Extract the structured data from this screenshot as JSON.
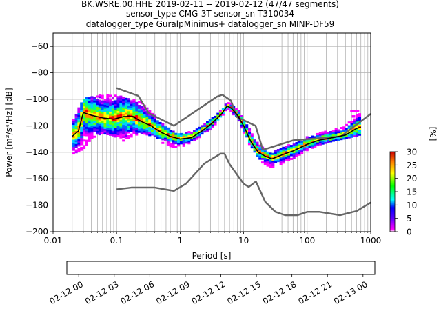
{
  "chart_data": {
    "type": "heatmap",
    "title_lines": [
      "BK.WSRE.00.HHE   2019-02-11 -- 2019-02-12  (47/47 segments)",
      "sensor_type CMG-3T sensor_sn T310034",
      "datalogger_type GuralpMinimus+ datalogger_sn MINP-DF59"
    ],
    "xlabel": "Period [s]",
    "ylabel": "Power [m²/s⁴/Hz] [dB]",
    "xscale": "log",
    "xlim": [
      0.01,
      1000
    ],
    "ylim": [
      -200,
      -50
    ],
    "xticks": [
      {
        "v": 0.01,
        "label": "0.01"
      },
      {
        "v": 0.1,
        "label": "0.1"
      },
      {
        "v": 1,
        "label": "1"
      },
      {
        "v": 10,
        "label": "10"
      },
      {
        "v": 100,
        "label": "100"
      },
      {
        "v": 1000,
        "label": "1000"
      }
    ],
    "yticks": [
      {
        "v": -60,
        "label": "−60"
      },
      {
        "v": -80,
        "label": "−80"
      },
      {
        "v": -100,
        "label": "−100"
      },
      {
        "v": -120,
        "label": "−120"
      },
      {
        "v": -140,
        "label": "−140"
      },
      {
        "v": -160,
        "label": "−160"
      },
      {
        "v": -180,
        "label": "−180"
      },
      {
        "v": -200,
        "label": "−200"
      }
    ],
    "grid": true,
    "nhnm": {
      "x": [
        0.1,
        0.22,
        0.32,
        0.8,
        3.8,
        4.6,
        6.3,
        7.9,
        15.4,
        20,
        24,
        60,
        340,
        1000
      ],
      "y": [
        -91.5,
        -97.4,
        -110.5,
        -120,
        -98,
        -96.5,
        -101,
        -113.5,
        -120,
        -138,
        -137,
        -131,
        -128,
        -111
      ]
    },
    "nlnm": {
      "x": [
        0.1,
        0.17,
        0.4,
        0.8,
        1.24,
        2.4,
        4.3,
        5,
        6,
        10,
        12,
        15.6,
        21.9,
        31.6,
        45,
        70,
        101,
        154,
        328,
        600,
        1000
      ],
      "y": [
        -168,
        -166.7,
        -166.7,
        -169.2,
        -163.7,
        -148.6,
        -141.1,
        -141.1,
        -149,
        -163.8,
        -166.2,
        -162.1,
        -177.5,
        -185,
        -187.5,
        -187.5,
        -185,
        -185,
        -187.5,
        -184.4,
        -178
      ]
    },
    "median": {
      "x": [
        0.02,
        0.025,
        0.03,
        0.04,
        0.06,
        0.09,
        0.13,
        0.18,
        0.25,
        0.35,
        0.5,
        0.7,
        1.0,
        1.5,
        2.2,
        3.2,
        4.5,
        5.5,
        6.5,
        8,
        10,
        13,
        17,
        22,
        28,
        40,
        60,
        100,
        150,
        250,
        400,
        600,
        700
      ],
      "y": [
        -128,
        -124,
        -110,
        -112,
        -114,
        -115,
        -113,
        -113,
        -117,
        -120,
        -125,
        -128,
        -130,
        -129,
        -124,
        -118,
        -111,
        -105,
        -107,
        -112,
        -120,
        -132,
        -140,
        -143,
        -145,
        -142,
        -139,
        -134,
        -131,
        -129,
        -127,
        -122,
        -121
      ]
    },
    "ppd_envelope": {
      "x": [
        0.02,
        0.03,
        0.04,
        0.06,
        0.09,
        0.13,
        0.18,
        0.25,
        0.35,
        0.5,
        0.7,
        1.0,
        1.5,
        2.2,
        3.2,
        4.5,
        5.5,
        6.5,
        8,
        10,
        13,
        17,
        22,
        28,
        40,
        60,
        100,
        150,
        250,
        400,
        600,
        700
      ],
      "upper": [
        -118,
        -100,
        -98,
        -97,
        -97,
        -99,
        -100,
        -103,
        -110,
        -118,
        -124,
        -127,
        -125,
        -120,
        -114,
        -108,
        -103,
        -104,
        -108,
        -114,
        -125,
        -134,
        -139,
        -141,
        -137,
        -134,
        -129,
        -126,
        -124,
        -120,
        -112,
        -110
      ],
      "lower": [
        -142,
        -138,
        -130,
        -126,
        -128,
        -132,
        -128,
        -126,
        -128,
        -133,
        -136,
        -137,
        -133,
        -128,
        -122,
        -114,
        -107,
        -110,
        -116,
        -125,
        -137,
        -146,
        -150,
        -152,
        -149,
        -145,
        -139,
        -135,
        -132,
        -130,
        -128,
        -127
      ]
    },
    "colorbar": {
      "label": "[%]",
      "min": 0,
      "max": 30,
      "ticks": [
        {
          "v": 0,
          "label": "0"
        },
        {
          "v": 5,
          "label": "5"
        },
        {
          "v": 10,
          "label": "10"
        },
        {
          "v": 15,
          "label": "15"
        },
        {
          "v": 20,
          "label": "20"
        },
        {
          "v": 25,
          "label": "25"
        },
        {
          "v": 30,
          "label": "30"
        }
      ]
    },
    "timeline": {
      "start": "2019-02-11 23:00",
      "end": "2019-02-13 01:00",
      "covered": [
        "2019-02-12 00:00",
        "2019-02-13 00:00"
      ],
      "colors": [
        "#008000",
        "#0000ff"
      ],
      "ticks": [
        "02-12 00",
        "02-12 03",
        "02-12 06",
        "02-12 09",
        "02-12 12",
        "02-12 15",
        "02-12 18",
        "02-12 21",
        "02-13 00"
      ]
    }
  }
}
